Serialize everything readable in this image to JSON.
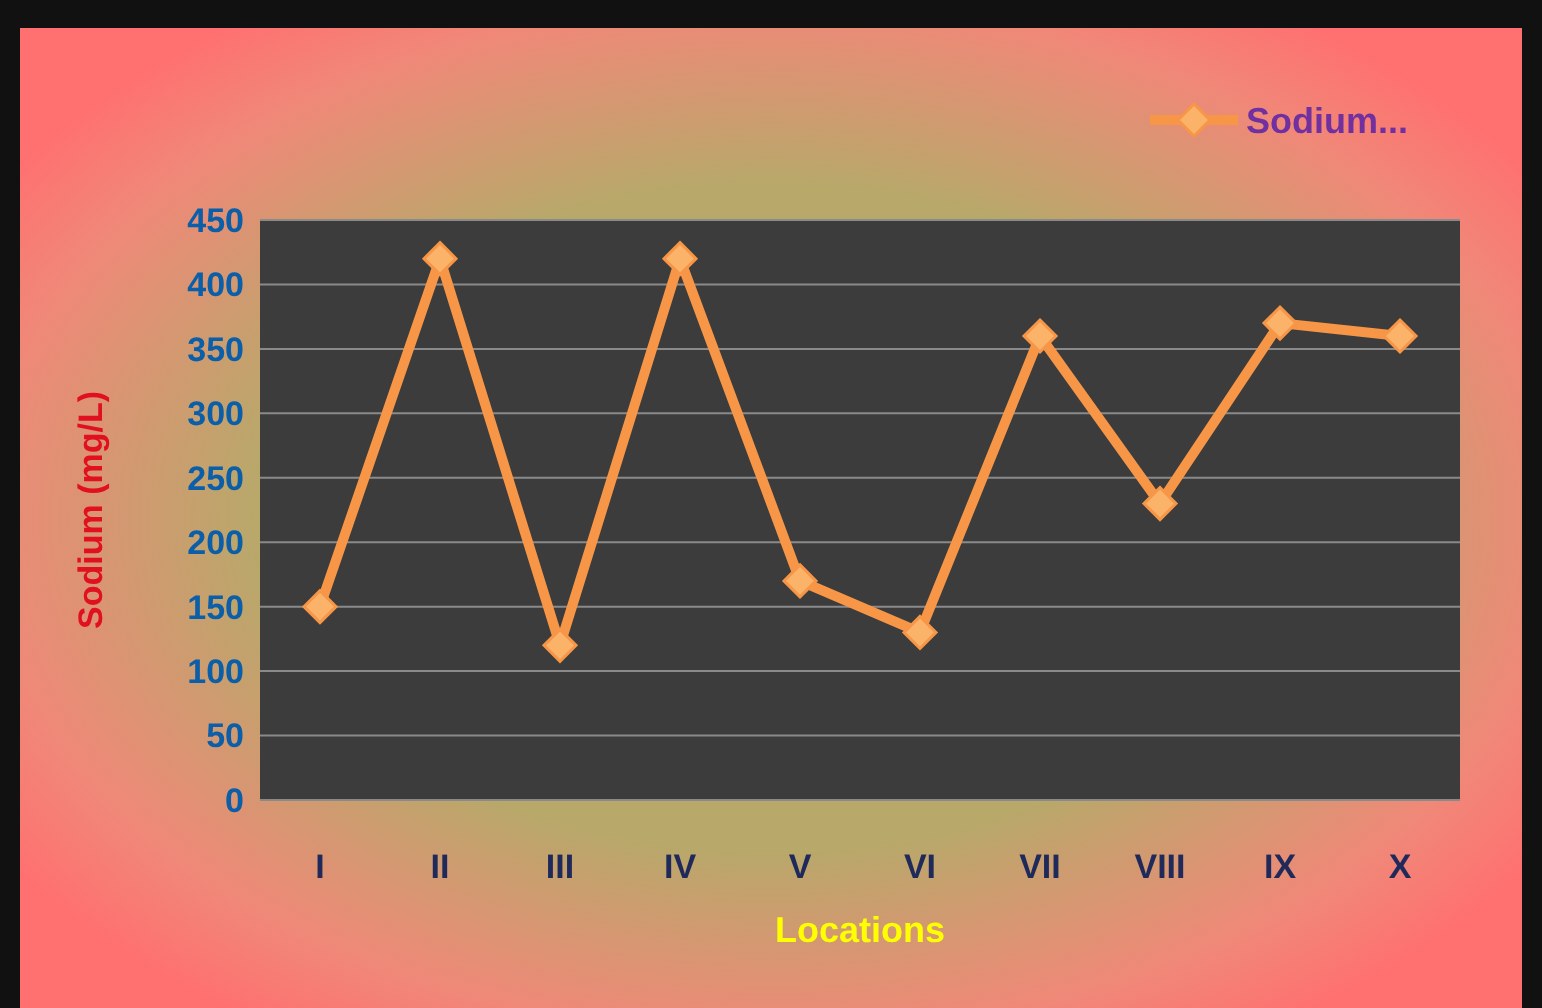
{
  "chart_data": {
    "type": "line",
    "xlabel": "Locations",
    "ylabel": "Sodium (mg/L)",
    "categories": [
      "I",
      "II",
      "III",
      "IV",
      "V",
      "VI",
      "VII",
      "VIII",
      "IX",
      "X"
    ],
    "series": [
      {
        "name": "Sodium...",
        "color": "#f79646",
        "values": [
          150,
          420,
          120,
          420,
          170,
          130,
          360,
          230,
          370,
          360
        ]
      }
    ],
    "ylim": [
      0,
      450
    ],
    "yticks": [
      0,
      50,
      100,
      150,
      200,
      250,
      300,
      350,
      400,
      450
    ],
    "grid": "y",
    "legend": "top right",
    "marker": "diamond",
    "line_style": "solid"
  }
}
